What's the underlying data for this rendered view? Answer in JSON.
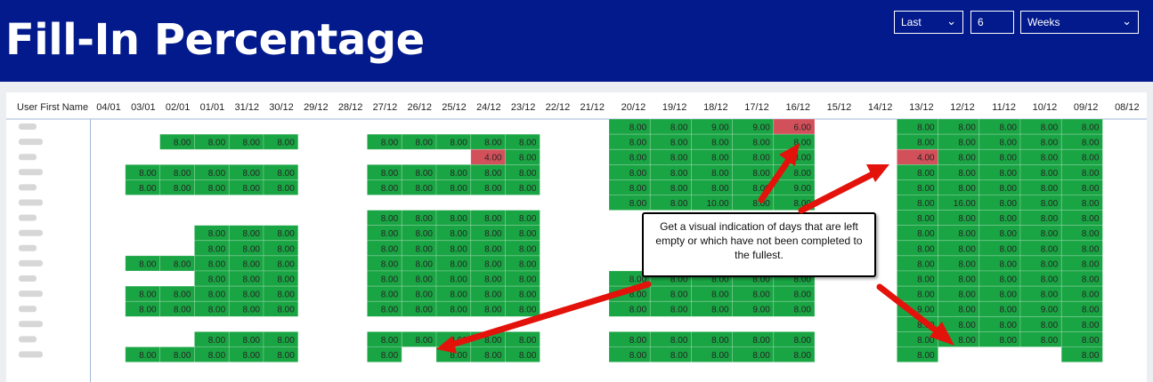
{
  "title": "Fill-In Percentage",
  "filters": {
    "relative": "Last",
    "count": "6",
    "unit": "Weeks"
  },
  "table": {
    "row_header": "User First Name",
    "columns": [
      "04/01",
      "03/01",
      "02/01",
      "01/01",
      "31/12",
      "30/12",
      "29/12",
      "28/12",
      "27/12",
      "26/12",
      "25/12",
      "24/12",
      "23/12",
      "22/12",
      "21/12",
      "20/12",
      "19/12",
      "18/12",
      "17/12",
      "16/12",
      "15/12",
      "14/12",
      "13/12",
      "12/12",
      "11/12",
      "10/12",
      "09/12",
      "08/12"
    ],
    "rows": [
      [
        null,
        null,
        null,
        null,
        null,
        null,
        null,
        null,
        null,
        null,
        null,
        null,
        null,
        null,
        null,
        "8.00",
        "8.00",
        "9.00",
        "9.00",
        "6.00",
        null,
        null,
        "8.00",
        "8.00",
        "8.00",
        "8.00",
        "8.00",
        null
      ],
      [
        null,
        null,
        "8.00",
        "8.00",
        "8.00",
        "8.00",
        null,
        null,
        "8.00",
        "8.00",
        "8.00",
        "8.00",
        "8.00",
        null,
        null,
        "8.00",
        "8.00",
        "8.00",
        "8.00",
        "8.00",
        null,
        null,
        "8.00",
        "8.00",
        "8.00",
        "8.00",
        "8.00",
        null
      ],
      [
        null,
        null,
        null,
        null,
        null,
        null,
        null,
        null,
        null,
        null,
        null,
        "4.00",
        "8.00",
        null,
        null,
        "8.00",
        "8.00",
        "8.00",
        "8.00",
        "8.00",
        null,
        null,
        "4.00",
        "8.00",
        "8.00",
        "8.00",
        "8.00",
        null
      ],
      [
        null,
        "8.00",
        "8.00",
        "8.00",
        "8.00",
        "8.00",
        null,
        null,
        "8.00",
        "8.00",
        "8.00",
        "8.00",
        "8.00",
        null,
        null,
        "8.00",
        "8.00",
        "8.00",
        "8.00",
        "8.00",
        null,
        null,
        "8.00",
        "8.00",
        "8.00",
        "8.00",
        "8.00",
        null
      ],
      [
        null,
        "8.00",
        "8.00",
        "8.00",
        "8.00",
        "8.00",
        null,
        null,
        "8.00",
        "8.00",
        "8.00",
        "8.00",
        "8.00",
        null,
        null,
        "8.00",
        "8.00",
        "8.00",
        "8.00",
        "9.00",
        null,
        null,
        "8.00",
        "8.00",
        "8.00",
        "8.00",
        "8.00",
        null
      ],
      [
        null,
        null,
        null,
        null,
        null,
        null,
        null,
        null,
        null,
        null,
        null,
        null,
        null,
        null,
        null,
        "8.00",
        "8.00",
        "10.00",
        "8.00",
        "8.00",
        null,
        null,
        "8.00",
        "16.00",
        "8.00",
        "8.00",
        "8.00",
        null
      ],
      [
        null,
        null,
        null,
        null,
        null,
        null,
        null,
        null,
        "8.00",
        "8.00",
        "8.00",
        "8.00",
        "8.00",
        null,
        null,
        null,
        null,
        null,
        null,
        null,
        null,
        null,
        "8.00",
        "8.00",
        "8.00",
        "8.00",
        "8.00",
        null
      ],
      [
        null,
        null,
        null,
        "8.00",
        "8.00",
        "8.00",
        null,
        null,
        "8.00",
        "8.00",
        "8.00",
        "8.00",
        "8.00",
        null,
        null,
        null,
        null,
        null,
        null,
        null,
        null,
        null,
        "8.00",
        "8.00",
        "8.00",
        "8.00",
        "8.00",
        null
      ],
      [
        null,
        null,
        null,
        "8.00",
        "8.00",
        "8.00",
        null,
        null,
        "8.00",
        "8.00",
        "8.00",
        "8.00",
        "8.00",
        null,
        null,
        null,
        null,
        null,
        null,
        null,
        null,
        null,
        "8.00",
        "8.00",
        "8.00",
        "8.00",
        "8.00",
        null
      ],
      [
        null,
        "8.00",
        "8.00",
        "8.00",
        "8.00",
        "8.00",
        null,
        null,
        "8.00",
        "8.00",
        "8.00",
        "8.00",
        "8.00",
        null,
        null,
        null,
        null,
        null,
        null,
        null,
        null,
        null,
        "8.00",
        "8.00",
        "8.00",
        "8.00",
        "8.00",
        null
      ],
      [
        null,
        null,
        null,
        "8.00",
        "8.00",
        "8.00",
        null,
        null,
        "8.00",
        "8.00",
        "8.00",
        "8.00",
        "8.00",
        null,
        null,
        "8.00",
        "8.00",
        "8.00",
        "8.00",
        "8.00",
        null,
        null,
        "8.00",
        "8.00",
        "8.00",
        "8.00",
        "8.00",
        null
      ],
      [
        null,
        "8.00",
        "8.00",
        "8.00",
        "8.00",
        "8.00",
        null,
        null,
        "8.00",
        "8.00",
        "8.00",
        "8.00",
        "8.00",
        null,
        null,
        "8.00",
        "8.00",
        "8.00",
        "8.00",
        "8.00",
        null,
        null,
        "8.00",
        "8.00",
        "8.00",
        "8.00",
        "8.00",
        null
      ],
      [
        null,
        "8.00",
        "8.00",
        "8.00",
        "8.00",
        "8.00",
        null,
        null,
        "8.00",
        "8.00",
        "8.00",
        "8.00",
        "8.00",
        null,
        null,
        "8.00",
        "8.00",
        "8.00",
        "9.00",
        "8.00",
        null,
        null,
        "9.00",
        "8.00",
        "8.00",
        "9.00",
        "8.00",
        null
      ],
      [
        null,
        null,
        null,
        null,
        null,
        null,
        null,
        null,
        null,
        null,
        null,
        null,
        null,
        null,
        null,
        null,
        null,
        null,
        null,
        null,
        null,
        null,
        "8.00",
        "8.00",
        "8.00",
        "8.00",
        "8.00",
        null
      ],
      [
        null,
        null,
        null,
        "8.00",
        "8.00",
        "8.00",
        null,
        null,
        "8.00",
        "8.00",
        "8.00",
        "8.00",
        "8.00",
        null,
        null,
        "8.00",
        "8.00",
        "8.00",
        "8.00",
        "8.00",
        null,
        null,
        "8.00",
        "8.00",
        "8.00",
        "8.00",
        "8.00",
        null
      ],
      [
        null,
        "8.00",
        "8.00",
        "8.00",
        "8.00",
        "8.00",
        null,
        null,
        "8.00",
        null,
        "8.00",
        "8.00",
        "8.00",
        null,
        null,
        "8.00",
        "8.00",
        "8.00",
        "8.00",
        "8.00",
        null,
        null,
        "8.00",
        null,
        null,
        null,
        "8.00",
        null
      ]
    ],
    "full_threshold": 8
  },
  "callout": {
    "text": "Get a visual indication of days that are left empty or which have not been completed to the fullest."
  },
  "colors": {
    "banner": "#031a8c",
    "complete": "#1aa544",
    "incomplete": "#d2505a",
    "arrow": "#e3120b"
  }
}
